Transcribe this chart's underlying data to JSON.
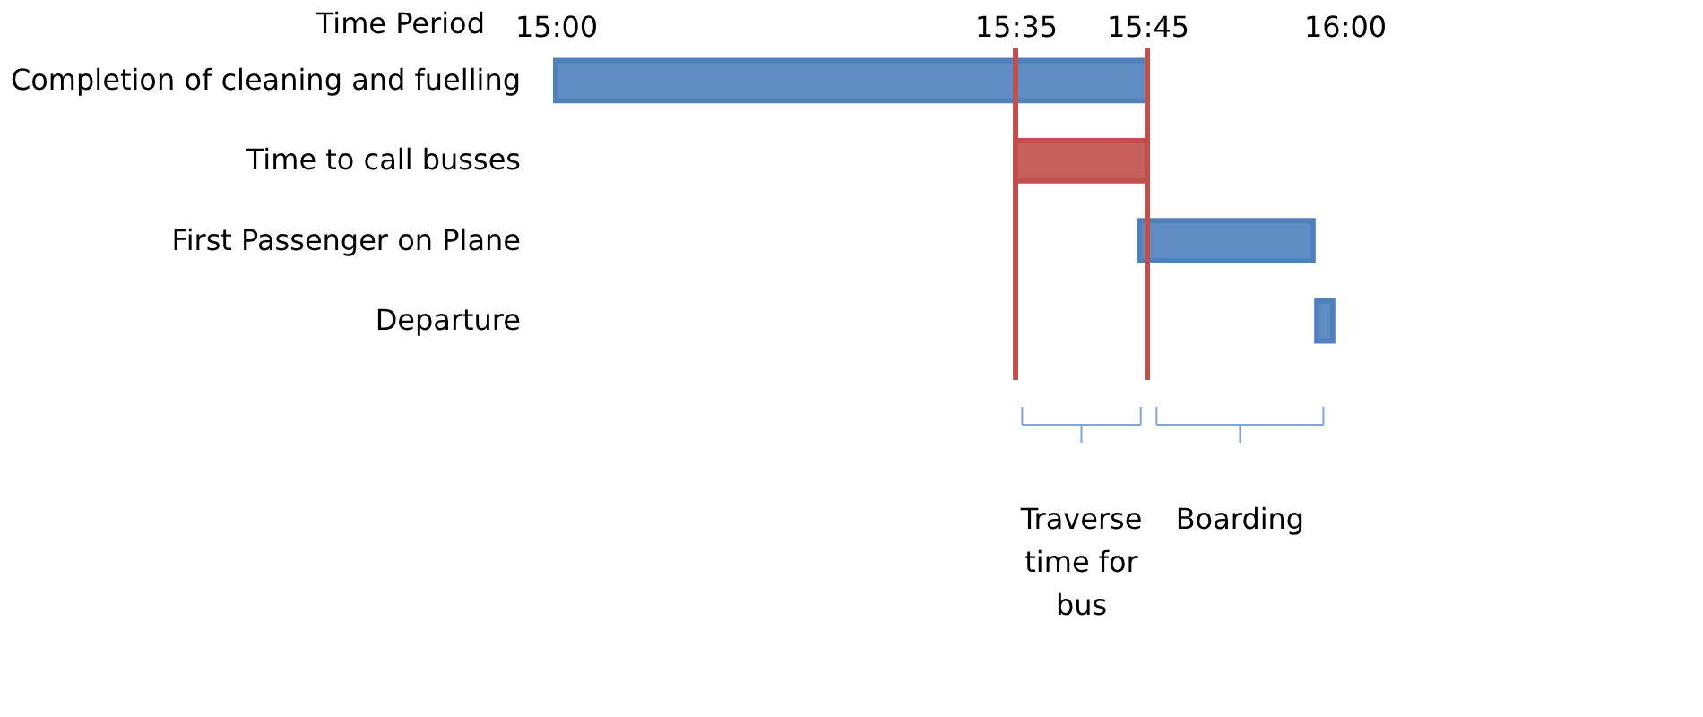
{
  "chart_data": {
    "type": "bar",
    "orientation": "horizontal",
    "xlabel": "Time Period",
    "categories": [
      "Completion of cleaning and fuelling",
      "Time to call busses",
      "First Passenger on Plane",
      "Departure"
    ],
    "base": [
      15,
      15.583,
      15.74,
      15.965
    ],
    "values": [
      0.75,
      0.167,
      0.22,
      0.02
    ],
    "colors": [
      "#4f81bd",
      "#c0504d",
      "#4f81bd",
      "#4f81bd"
    ],
    "xlim": [
      15,
      16
    ],
    "xticks": [
      {
        "value": 15,
        "label": "15:00"
      },
      {
        "value": 15.583,
        "label": "15:35"
      },
      {
        "value": 15.75,
        "label": "15:45"
      },
      {
        "value": 16,
        "label": "16:00"
      }
    ],
    "ref_lines": [
      {
        "axis": "x",
        "value": 15.583,
        "label": null,
        "color": "#c0504d"
      },
      {
        "axis": "x",
        "value": 15.75,
        "label": null,
        "color": "#c0504d"
      }
    ],
    "annotations": [
      "Traverse\ntime for\nbus",
      "Boarding"
    ]
  }
}
